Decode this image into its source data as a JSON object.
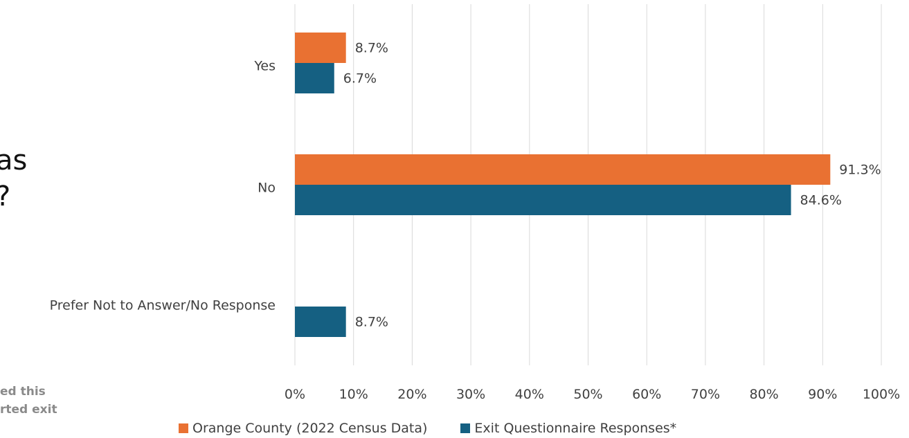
{
  "left_fragments": {
    "title_line1": "as",
    "title_line2": "?",
    "note_line1": "ed this",
    "note_line2": "rted exit"
  },
  "chart_data": {
    "type": "bar",
    "orientation": "horizontal",
    "categories": [
      "Yes",
      "No",
      "Prefer Not to Answer/No Response"
    ],
    "series": [
      {
        "name": "Orange County (2022 Census Data)",
        "values": [
          8.7,
          91.3,
          null
        ],
        "labels": [
          "8.7%",
          "91.3%",
          ""
        ],
        "color": "#E97132"
      },
      {
        "name": "Exit Questionnaire Responses*",
        "values": [
          6.7,
          84.6,
          8.7
        ],
        "labels": [
          "6.7%",
          "84.6%",
          "8.7%"
        ],
        "color": "#156082"
      }
    ],
    "xlim": [
      0,
      100
    ],
    "x_ticks": [
      "0%",
      "10%",
      "20%",
      "30%",
      "40%",
      "50%",
      "60%",
      "70%",
      "80%",
      "90%",
      "100%"
    ],
    "grid": "vertical",
    "legend": "bottom",
    "gridline_color": "#d9d9d9"
  }
}
